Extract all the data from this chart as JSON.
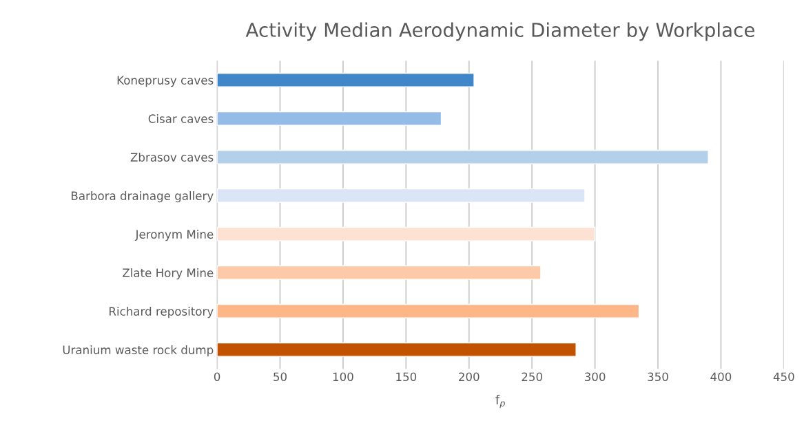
{
  "chart_data": {
    "type": "bar",
    "orientation": "horizontal",
    "title": "Activity Median Aerodynamic Diameter by Workplace",
    "xlabel": "f$_{p}$",
    "categories": [
      "Koneprusy caves",
      "Cisar caves",
      "Zbrasov caves",
      "Barbora drainage gallery",
      "Jeronym Mine",
      "Zlate Hory Mine",
      "Richard repository",
      "Uranium waste rock dump"
    ],
    "values": [
      204,
      178,
      390,
      292,
      300,
      257,
      335,
      285
    ],
    "colors": [
      "#3f87c9",
      "#95bce6",
      "#b3d0ea",
      "#dae6f5",
      "#fde1d2",
      "#fdcaa9",
      "#fdb687",
      "#c05200"
    ],
    "xlim": [
      0,
      450
    ],
    "xticks": [
      0,
      50,
      100,
      150,
      200,
      250,
      300,
      350,
      400,
      450
    ],
    "grid": "x"
  }
}
